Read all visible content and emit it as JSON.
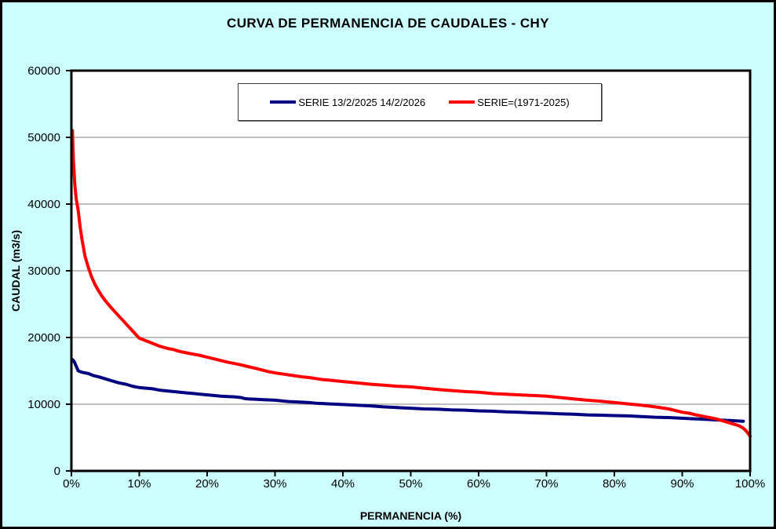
{
  "frame": {
    "background": "#CCFFFF",
    "border_color": "#000000"
  },
  "chart_data": {
    "type": "line",
    "title": "CURVA DE PERMANENCIA DE CAUDALES - CHY",
    "xlabel": "PERMANENCIA (%)",
    "ylabel": "CAUDAL (m3/s)",
    "xlim": [
      0,
      100
    ],
    "ylim": [
      0,
      60000
    ],
    "grid": "horizontal",
    "grid_color": "#808080",
    "axis_color": "#000000",
    "plot_background": "#FFFFFF",
    "legend_position": "top-center-inside",
    "x_ticks": [
      {
        "value": 0,
        "label": "0%"
      },
      {
        "value": 10,
        "label": "10%"
      },
      {
        "value": 20,
        "label": "20%"
      },
      {
        "value": 30,
        "label": "30%"
      },
      {
        "value": 40,
        "label": "40%"
      },
      {
        "value": 50,
        "label": "50%"
      },
      {
        "value": 60,
        "label": "60%"
      },
      {
        "value": 70,
        "label": "70%"
      },
      {
        "value": 80,
        "label": "80%"
      },
      {
        "value": 90,
        "label": "90%"
      },
      {
        "value": 100,
        "label": "100%"
      }
    ],
    "y_ticks": [
      {
        "value": 0,
        "label": "0"
      },
      {
        "value": 10000,
        "label": "10000"
      },
      {
        "value": 20000,
        "label": "20000"
      },
      {
        "value": 30000,
        "label": "30000"
      },
      {
        "value": 40000,
        "label": "40000"
      },
      {
        "value": 50000,
        "label": "50000"
      },
      {
        "value": 60000,
        "label": "60000"
      }
    ],
    "series": [
      {
        "name": "SERIE 13/2/2025 14/2/2026",
        "color": "#000080",
        "points": [
          [
            0.15,
            16700
          ],
          [
            0.4,
            16400
          ],
          [
            0.7,
            15700
          ],
          [
            1,
            15000
          ],
          [
            1.5,
            14800
          ],
          [
            2.5,
            14600
          ],
          [
            3.2,
            14300
          ],
          [
            4,
            14100
          ],
          [
            5,
            13800
          ],
          [
            6,
            13500
          ],
          [
            7,
            13200
          ],
          [
            8,
            13000
          ],
          [
            9,
            12700
          ],
          [
            10,
            12500
          ],
          [
            11,
            12400
          ],
          [
            12,
            12300
          ],
          [
            13,
            12100
          ],
          [
            14,
            12000
          ],
          [
            15,
            11900
          ],
          [
            16,
            11800
          ],
          [
            17,
            11700
          ],
          [
            18,
            11600
          ],
          [
            19,
            11500
          ],
          [
            20,
            11400
          ],
          [
            21,
            11300
          ],
          [
            22,
            11200
          ],
          [
            23,
            11150
          ],
          [
            24,
            11100
          ],
          [
            25,
            11000
          ],
          [
            25.5,
            10850
          ],
          [
            26,
            10800
          ],
          [
            27,
            10750
          ],
          [
            28,
            10700
          ],
          [
            29,
            10650
          ],
          [
            30,
            10600
          ],
          [
            31,
            10500
          ],
          [
            32,
            10400
          ],
          [
            33,
            10350
          ],
          [
            34,
            10300
          ],
          [
            35,
            10250
          ],
          [
            36,
            10150
          ],
          [
            37,
            10100
          ],
          [
            38,
            10050
          ],
          [
            39,
            10000
          ],
          [
            40,
            9950
          ],
          [
            42,
            9850
          ],
          [
            44,
            9750
          ],
          [
            46,
            9600
          ],
          [
            48,
            9500
          ],
          [
            50,
            9400
          ],
          [
            52,
            9300
          ],
          [
            54,
            9250
          ],
          [
            56,
            9150
          ],
          [
            58,
            9100
          ],
          [
            60,
            9000
          ],
          [
            62,
            8950
          ],
          [
            64,
            8850
          ],
          [
            66,
            8800
          ],
          [
            68,
            8700
          ],
          [
            70,
            8650
          ],
          [
            72,
            8550
          ],
          [
            74,
            8500
          ],
          [
            76,
            8400
          ],
          [
            78,
            8350
          ],
          [
            80,
            8300
          ],
          [
            82,
            8250
          ],
          [
            84,
            8150
          ],
          [
            86,
            8050
          ],
          [
            88,
            8000
          ],
          [
            90,
            7900
          ],
          [
            92,
            7800
          ],
          [
            93,
            7750
          ],
          [
            94,
            7700
          ],
          [
            95,
            7650
          ],
          [
            96,
            7600
          ],
          [
            97,
            7550
          ],
          [
            98,
            7500
          ],
          [
            99,
            7450
          ]
        ]
      },
      {
        "name": "SERIE=(1971-2025)",
        "color": "#FF0000",
        "points": [
          [
            0.15,
            51000
          ],
          [
            0.3,
            46500
          ],
          [
            0.5,
            43000
          ],
          [
            0.7,
            40800
          ],
          [
            1,
            39000
          ],
          [
            1.3,
            36500
          ],
          [
            1.6,
            34500
          ],
          [
            2,
            32200
          ],
          [
            2.5,
            30500
          ],
          [
            3,
            29000
          ],
          [
            3.5,
            27900
          ],
          [
            4,
            27000
          ],
          [
            4.5,
            26200
          ],
          [
            5,
            25500
          ],
          [
            6,
            24300
          ],
          [
            7,
            23200
          ],
          [
            8,
            22100
          ],
          [
            9,
            21000
          ],
          [
            10,
            19900
          ],
          [
            11,
            19500
          ],
          [
            12,
            19100
          ],
          [
            13,
            18700
          ],
          [
            14,
            18400
          ],
          [
            15,
            18200
          ],
          [
            16,
            17900
          ],
          [
            17,
            17700
          ],
          [
            18,
            17500
          ],
          [
            19,
            17300
          ],
          [
            20,
            17050
          ],
          [
            21,
            16800
          ],
          [
            22,
            16550
          ],
          [
            23,
            16300
          ],
          [
            24,
            16100
          ],
          [
            25,
            15900
          ],
          [
            26,
            15650
          ],
          [
            27,
            15400
          ],
          [
            28,
            15150
          ],
          [
            29,
            14900
          ],
          [
            30,
            14700
          ],
          [
            31,
            14550
          ],
          [
            32,
            14400
          ],
          [
            33,
            14250
          ],
          [
            34,
            14100
          ],
          [
            35,
            14000
          ],
          [
            36,
            13850
          ],
          [
            37,
            13700
          ],
          [
            38,
            13600
          ],
          [
            39,
            13500
          ],
          [
            40,
            13400
          ],
          [
            42,
            13200
          ],
          [
            44,
            13000
          ],
          [
            46,
            12850
          ],
          [
            48,
            12700
          ],
          [
            50,
            12600
          ],
          [
            52,
            12400
          ],
          [
            54,
            12200
          ],
          [
            56,
            12050
          ],
          [
            58,
            11900
          ],
          [
            60,
            11800
          ],
          [
            62,
            11600
          ],
          [
            64,
            11500
          ],
          [
            66,
            11400
          ],
          [
            68,
            11300
          ],
          [
            70,
            11200
          ],
          [
            72,
            11000
          ],
          [
            74,
            10800
          ],
          [
            76,
            10600
          ],
          [
            78,
            10450
          ],
          [
            80,
            10250
          ],
          [
            82,
            10050
          ],
          [
            84,
            9850
          ],
          [
            86,
            9600
          ],
          [
            88,
            9300
          ],
          [
            90,
            8800
          ],
          [
            91,
            8650
          ],
          [
            92,
            8400
          ],
          [
            93,
            8200
          ],
          [
            94,
            8000
          ],
          [
            95,
            7800
          ],
          [
            96,
            7500
          ],
          [
            97,
            7200
          ],
          [
            98,
            6900
          ],
          [
            98.5,
            6700
          ],
          [
            99,
            6400
          ],
          [
            99.5,
            5900
          ],
          [
            100,
            5200
          ]
        ]
      }
    ]
  }
}
